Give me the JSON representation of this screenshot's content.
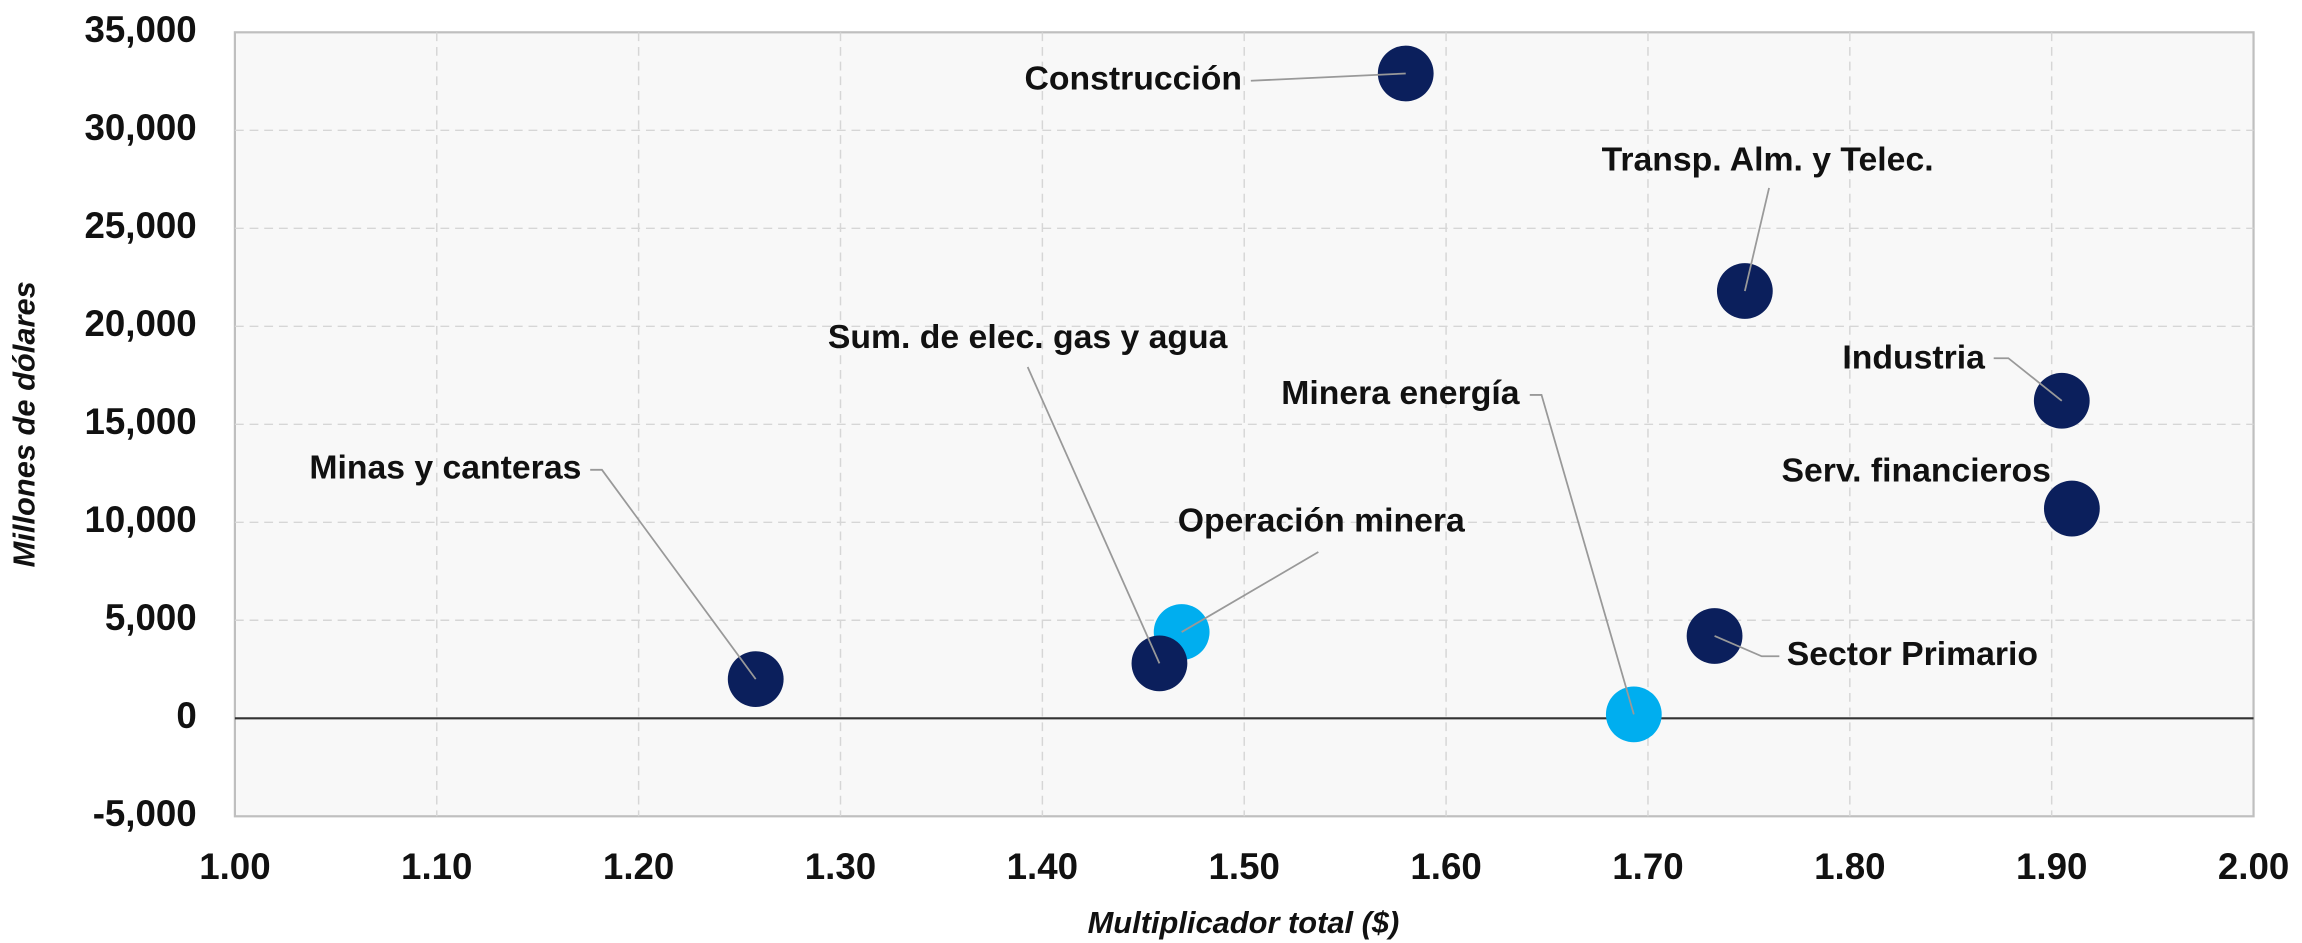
{
  "chart_data": {
    "type": "scatter",
    "x_label": "Multiplicador total ($)",
    "y_label": "Millones de dólares",
    "labels": [
      "Construcción",
      "Transp. Alm. y Telec.",
      "Industria",
      "Serv. financieros",
      "Sector Primario",
      "Minera energía",
      "Operación minera",
      "Sum. de elec. gas y agua",
      "Minas y canteras"
    ],
    "x": [
      1.58,
      1.748,
      1.905,
      1.91,
      1.733,
      1.693,
      1.469,
      1.458,
      1.258
    ],
    "values": [
      32900,
      21800,
      16200,
      10700,
      4200,
      200,
      4400,
      2800,
      2000
    ],
    "colors": [
      "#0b1f5c",
      "#0b1f5c",
      "#0b1f5c",
      "#0b1f5c",
      "#0b1f5c",
      "#00aeef",
      "#00aeef",
      "#0b1f5c",
      "#0b1f5c"
    ],
    "xlim": [
      1,
      2
    ],
    "xticks": [
      {
        "value": 1,
        "label": "1.00"
      },
      {
        "value": 1.1,
        "label": "1.10"
      },
      {
        "value": 1.2,
        "label": "1.20"
      },
      {
        "value": 1.3,
        "label": "1.30"
      },
      {
        "value": 1.4,
        "label": "1.40"
      },
      {
        "value": 1.5,
        "label": "1.50"
      },
      {
        "value": 1.6,
        "label": "1.60"
      },
      {
        "value": 1.7,
        "label": "1.70"
      },
      {
        "value": 1.8,
        "label": "1.80"
      },
      {
        "value": 1.9,
        "label": "1.90"
      },
      {
        "value": 2,
        "label": "2.00"
      }
    ],
    "ylim": [
      -5000,
      35000
    ],
    "yticks": [
      {
        "value": -5000,
        "label": "-5,000"
      },
      0,
      {
        "value": 5000,
        "label": "5,000"
      },
      {
        "value": 10000,
        "label": "10,000"
      },
      {
        "value": 15000,
        "label": "15,000"
      },
      {
        "value": 20000,
        "label": "20,000"
      },
      {
        "value": 25000,
        "label": "25,000"
      },
      {
        "value": 30000,
        "label": "30,000"
      },
      {
        "value": 35000,
        "label": "35,000"
      }
    ],
    "grid": true
  }
}
